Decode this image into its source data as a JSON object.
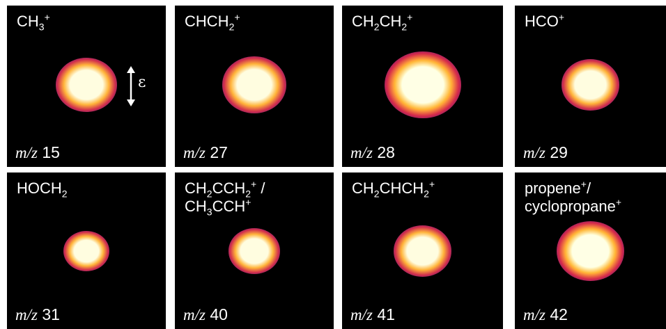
{
  "panels": [
    {
      "species": [
        "CH",
        {
          "sub": "3"
        },
        {
          "sup": "+"
        }
      ],
      "mz_label": "m/z",
      "mz": "15",
      "intensity": 1.0,
      "size": 1.0,
      "noise": 0.2
    },
    {
      "species": [
        "CHCH",
        {
          "sub": "2"
        },
        {
          "sup": "+"
        }
      ],
      "mz_label": "m/z",
      "mz": "27",
      "intensity": 0.9,
      "size": 1.05,
      "noise": 0.5
    },
    {
      "species": [
        "CH",
        {
          "sub": "2"
        },
        "CH",
        {
          "sub": "2"
        },
        {
          "sup": "+"
        }
      ],
      "mz_label": "m/z",
      "mz": "28",
      "intensity": 0.8,
      "size": 1.25,
      "noise": 0.9
    },
    {
      "species": [
        "HCO",
        {
          "sup": "+"
        }
      ],
      "mz_label": "m/z",
      "mz": "29",
      "intensity": 1.0,
      "size": 0.95,
      "noise": 0.3
    },
    {
      "species": [
        "HOCH",
        {
          "sub": "2"
        }
      ],
      "mz_label": "m/z",
      "mz": "31",
      "intensity": 0.95,
      "size": 0.75,
      "noise": 0.4
    },
    {
      "species": [
        "CH",
        {
          "sub": "2"
        },
        "CCH",
        {
          "sub": "2"
        },
        {
          "sup": "+"
        },
        " /",
        {
          "br": true
        },
        "CH",
        {
          "sub": "3"
        },
        "CCH",
        {
          "sup": "+"
        }
      ],
      "mz_label": "m/z",
      "mz": "40",
      "intensity": 1.0,
      "size": 0.85,
      "noise": 0.3
    },
    {
      "species": [
        "CH",
        {
          "sub": "2"
        },
        "CHCH",
        {
          "sub": "2"
        },
        {
          "sup": "+"
        }
      ],
      "mz_label": "m/z",
      "mz": "41",
      "intensity": 1.0,
      "size": 0.95,
      "noise": 0.2
    },
    {
      "species": [
        "propene",
        {
          "sup": "+"
        },
        "/",
        {
          "br": true
        },
        "cyclopropane",
        {
          "sup": "+"
        }
      ],
      "mz_label": "m/z",
      "mz": "42",
      "intensity": 0.85,
      "size": 1.1,
      "noise": 0.7
    }
  ],
  "polarization_symbol": "ε",
  "colors": {
    "background": "#000000",
    "core": "#fffde0",
    "mid": "#ffb43a",
    "outer": "#d2304d",
    "halo": "#5a1478"
  }
}
